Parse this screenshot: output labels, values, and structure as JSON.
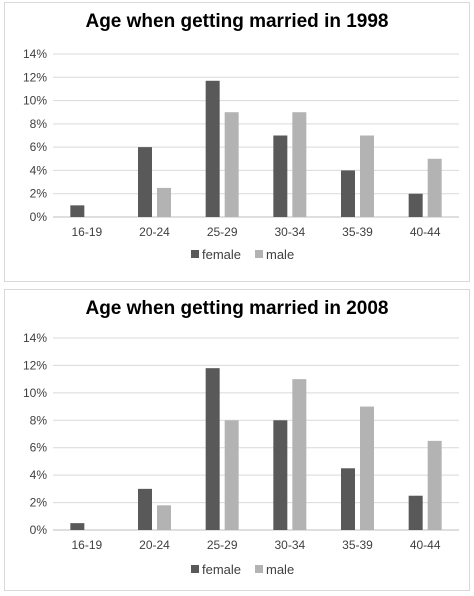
{
  "chart_data": [
    {
      "type": "bar",
      "title": "Age when getting married in 1998",
      "categories": [
        "16-19",
        "20-24",
        "25-29",
        "30-34",
        "35-39",
        "40-44"
      ],
      "series": [
        {
          "name": "female",
          "color": "#595959",
          "values": [
            1,
            6,
            11.7,
            7,
            4,
            2
          ]
        },
        {
          "name": "male",
          "color": "#b3b3b3",
          "values": [
            0,
            2.5,
            9,
            9,
            7,
            5
          ]
        }
      ],
      "ylim": [
        0,
        14
      ],
      "yticks": [
        "0%",
        "2%",
        "4%",
        "6%",
        "8%",
        "10%",
        "12%",
        "14%"
      ],
      "ytick_values": [
        0,
        2,
        4,
        6,
        8,
        10,
        12,
        14
      ],
      "grid": true,
      "legend": "bottom"
    },
    {
      "type": "bar",
      "title": "Age when getting married in 2008",
      "categories": [
        "16-19",
        "20-24",
        "25-29",
        "30-34",
        "35-39",
        "40-44"
      ],
      "series": [
        {
          "name": "female",
          "color": "#595959",
          "values": [
            0.5,
            3,
            11.8,
            8,
            4.5,
            2.5
          ]
        },
        {
          "name": "male",
          "color": "#b3b3b3",
          "values": [
            0,
            1.8,
            8,
            11,
            9,
            6.5
          ]
        }
      ],
      "ylim": [
        0,
        14
      ],
      "yticks": [
        "0%",
        "2%",
        "4%",
        "6%",
        "8%",
        "10%",
        "12%",
        "14%"
      ],
      "ytick_values": [
        0,
        2,
        4,
        6,
        8,
        10,
        12,
        14
      ],
      "grid": true,
      "legend": "bottom"
    }
  ]
}
